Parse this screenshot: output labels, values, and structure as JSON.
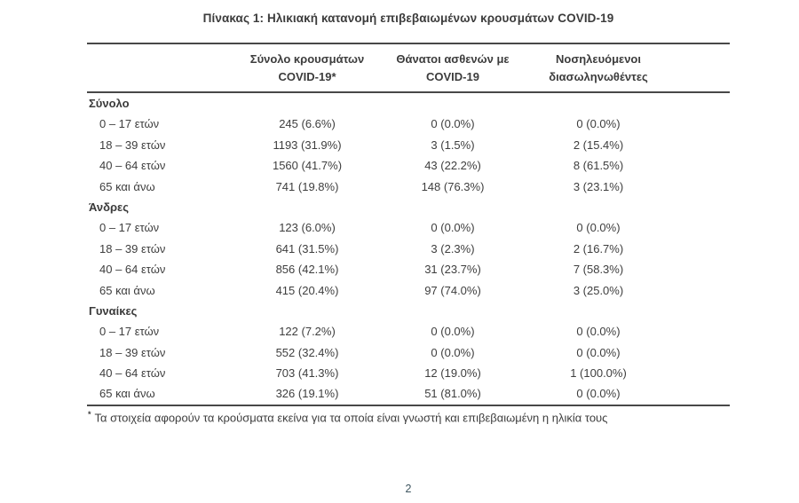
{
  "page": {
    "title": "Πίνακας 1: Ηλικιακή κατανομή επιβεβαιωμένων κρουσμάτων COVID-19",
    "page_number": "2"
  },
  "table": {
    "column_headers": [
      {
        "line1": "Σύνολο κρουσμάτων",
        "line2": "COVID-19*"
      },
      {
        "line1": "Θάνατοι ασθενών με",
        "line2": "COVID-19"
      },
      {
        "line1": "Νοσηλευόμενοι",
        "line2": "διασωληνωθέντες"
      }
    ],
    "sections": [
      {
        "name": "Σύνολο",
        "rows": [
          {
            "label": "0 – 17 ετών",
            "cases": "245 (6.6%)",
            "deaths": "0 (0.0%)",
            "intubated": "0 (0.0%)"
          },
          {
            "label": "18 – 39 ετών",
            "cases": "1193 (31.9%)",
            "deaths": "3 (1.5%)",
            "intubated": "2 (15.4%)"
          },
          {
            "label": "40 – 64 ετών",
            "cases": "1560 (41.7%)",
            "deaths": "43 (22.2%)",
            "intubated": "8 (61.5%)"
          },
          {
            "label": "65 και άνω",
            "cases": "741 (19.8%)",
            "deaths": "148 (76.3%)",
            "intubated": "3 (23.1%)"
          }
        ]
      },
      {
        "name": "Άνδρες",
        "rows": [
          {
            "label": "0 – 17 ετών",
            "cases": "123 (6.0%)",
            "deaths": "0 (0.0%)",
            "intubated": "0 (0.0%)"
          },
          {
            "label": "18 – 39 ετών",
            "cases": "641 (31.5%)",
            "deaths": "3 (2.3%)",
            "intubated": "2 (16.7%)"
          },
          {
            "label": "40 – 64 ετών",
            "cases": "856 (42.1%)",
            "deaths": "31 (23.7%)",
            "intubated": "7 (58.3%)"
          },
          {
            "label": "65 και άνω",
            "cases": "415 (20.4%)",
            "deaths": "97 (74.0%)",
            "intubated": "3 (25.0%)"
          }
        ]
      },
      {
        "name": "Γυναίκες",
        "rows": [
          {
            "label": "0 – 17 ετών",
            "cases": "122 (7.2%)",
            "deaths": "0 (0.0%)",
            "intubated": "0 (0.0%)"
          },
          {
            "label": "18 – 39 ετών",
            "cases": "552 (32.4%)",
            "deaths": "0 (0.0%)",
            "intubated": "0 (0.0%)"
          },
          {
            "label": "40 – 64 ετών",
            "cases": "703 (41.3%)",
            "deaths": "12 (19.0%)",
            "intubated": "1 (100.0%)"
          },
          {
            "label": "65 και άνω",
            "cases": "326 (19.1%)",
            "deaths": "51 (81.0%)",
            "intubated": "0 (0.0%)"
          }
        ]
      }
    ],
    "footnote_marker": "*",
    "footnote": "Τα στοιχεία αφορούν τα κρούσματα εκείνα για τα οποία είναι γνωστή και επιβεβαιωμένη η ηλικία τους"
  },
  "colors": {
    "text": "#3e3e3e",
    "rule": "#484848",
    "page_number": "#3f5660"
  }
}
